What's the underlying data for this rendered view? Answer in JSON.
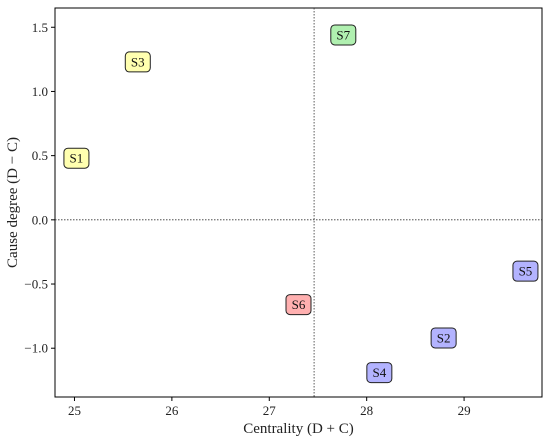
{
  "chart_data": {
    "type": "scatter",
    "title": "",
    "xlabel": "Centrality  (D + C)",
    "ylabel": "Cause degree  (D − C)",
    "xlim": [
      24.8,
      29.8
    ],
    "ylim": [
      -1.38,
      1.65
    ],
    "xticks": [
      25,
      26,
      27,
      28,
      29
    ],
    "xtick_labels": [
      "25",
      "26",
      "27",
      "28",
      "29"
    ],
    "yticks": [
      -1.0,
      -0.5,
      0.0,
      0.5,
      1.0,
      1.5
    ],
    "ytick_labels": [
      "−1.0",
      "−0.5",
      "0.0",
      "0.5",
      "1.0",
      "1.5"
    ],
    "reference_lines": {
      "x": 27.46,
      "y": 0.0
    },
    "grid": false,
    "points": [
      {
        "label": "S1",
        "x": 25.02,
        "y": 0.48,
        "color": "#ffffb0"
      },
      {
        "label": "S2",
        "x": 28.79,
        "y": -0.92,
        "color": "#b3b3ff"
      },
      {
        "label": "S3",
        "x": 25.65,
        "y": 1.23,
        "color": "#ffffb0"
      },
      {
        "label": "S4",
        "x": 28.13,
        "y": -1.19,
        "color": "#b3b3ff"
      },
      {
        "label": "S5",
        "x": 29.63,
        "y": -0.4,
        "color": "#b3b3ff"
      },
      {
        "label": "S6",
        "x": 27.3,
        "y": -0.66,
        "color": "#ffb0b0"
      },
      {
        "label": "S7",
        "x": 27.76,
        "y": 1.44,
        "color": "#b0f0b0"
      }
    ]
  }
}
